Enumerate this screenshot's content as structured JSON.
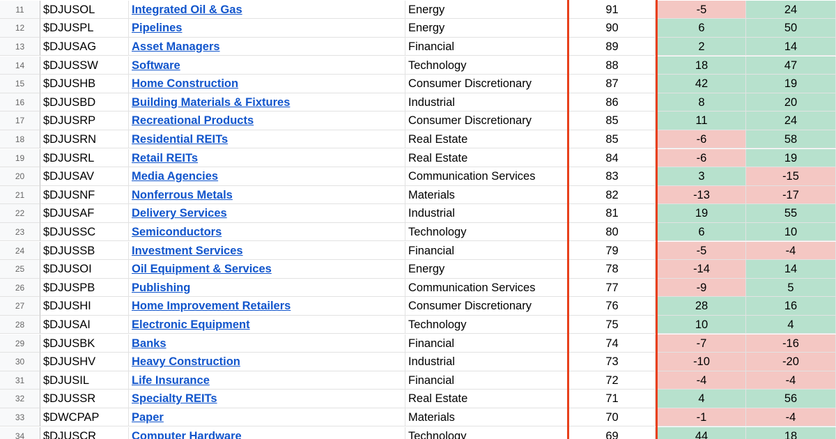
{
  "table": {
    "rows": [
      [
        11,
        "$DJUSOL",
        "Integrated Oil & Gas",
        "Energy",
        91,
        -5,
        24
      ],
      [
        12,
        "$DJUSPL",
        "Pipelines",
        "Energy",
        90,
        6,
        50
      ],
      [
        13,
        "$DJUSAG",
        "Asset Managers",
        "Financial",
        89,
        2,
        14
      ],
      [
        14,
        "$DJUSSW",
        "Software",
        "Technology",
        88,
        18,
        47
      ],
      [
        15,
        "$DJUSHB",
        "Home Construction",
        "Consumer Discretionary",
        87,
        42,
        19
      ],
      [
        16,
        "$DJUSBD",
        "Building Materials & Fixtures",
        "Industrial",
        86,
        8,
        20
      ],
      [
        17,
        "$DJUSRP",
        "Recreational Products",
        "Consumer Discretionary",
        85,
        11,
        24
      ],
      [
        18,
        "$DJUSRN",
        "Residential REITs",
        "Real Estate",
        85,
        -6,
        58
      ],
      [
        19,
        "$DJUSRL",
        "Retail REITs",
        "Real Estate",
        84,
        -6,
        19
      ],
      [
        20,
        "$DJUSAV",
        "Media Agencies",
        "Communication Services",
        83,
        3,
        -15
      ],
      [
        21,
        "$DJUSNF",
        "Nonferrous Metals",
        "Materials",
        82,
        -13,
        -17
      ],
      [
        22,
        "$DJUSAF",
        "Delivery Services",
        "Industrial",
        81,
        19,
        55
      ],
      [
        23,
        "$DJUSSC",
        "Semiconductors",
        "Technology",
        80,
        6,
        10
      ],
      [
        24,
        "$DJUSSB",
        "Investment Services",
        "Financial",
        79,
        -5,
        -4
      ],
      [
        25,
        "$DJUSOI",
        "Oil Equipment & Services",
        "Energy",
        78,
        -14,
        14
      ],
      [
        26,
        "$DJUSPB",
        "Publishing",
        "Communication Services",
        77,
        -9,
        5
      ],
      [
        27,
        "$DJUSHI",
        "Home Improvement Retailers",
        "Consumer Discretionary",
        76,
        28,
        16
      ],
      [
        28,
        "$DJUSAI",
        "Electronic Equipment",
        "Technology",
        75,
        10,
        4
      ],
      [
        29,
        "$DJUSBK",
        "Banks",
        "Financial",
        74,
        -7,
        -16
      ],
      [
        30,
        "$DJUSHV",
        "Heavy Construction",
        "Industrial",
        73,
        -10,
        -20
      ],
      [
        31,
        "$DJUSIL",
        "Life Insurance",
        "Financial",
        72,
        -4,
        -4
      ],
      [
        32,
        "$DJUSSR",
        "Specialty REITs",
        "Real Estate",
        71,
        4,
        56
      ],
      [
        33,
        "$DWCPAP",
        "Paper",
        "Materials",
        70,
        -1,
        -4
      ],
      [
        34,
        "$DJUSCR",
        "Computer Hardware",
        "Technology",
        69,
        44,
        18
      ]
    ]
  }
}
